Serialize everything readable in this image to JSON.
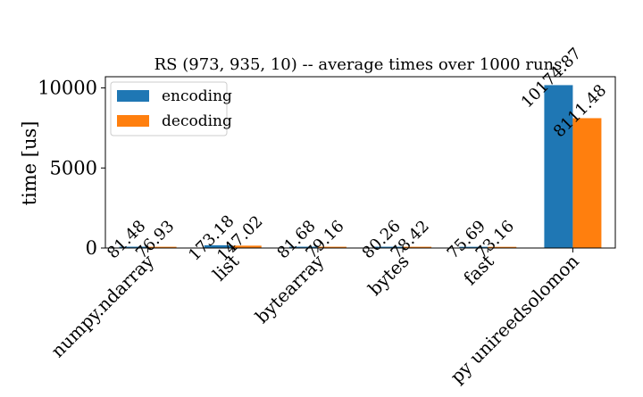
{
  "chart_data": {
    "type": "bar",
    "title": "RS (973, 935, 10) -- average times over 1000 runs",
    "xlabel": "",
    "ylabel": "time [us]",
    "ylim": [
      0,
      10700
    ],
    "yticks": [
      0,
      5000,
      10000
    ],
    "ytick_labels": [
      "0",
      "5000",
      "10000"
    ],
    "categories": [
      "numpy.ndarray",
      "list",
      "bytearray",
      "bytes",
      "fast",
      "py unireedsolomon"
    ],
    "series": [
      {
        "name": "encoding",
        "color": "#1f77b4",
        "values": [
          81.48,
          173.18,
          81.68,
          80.26,
          75.69,
          10174.87
        ],
        "labels": [
          "81.48",
          "173.18",
          "81.68",
          "80.26",
          "75.69",
          "10174.87"
        ]
      },
      {
        "name": "decoding",
        "color": "#ff7f0e",
        "values": [
          76.93,
          147.02,
          79.16,
          78.42,
          73.16,
          8111.48
        ],
        "labels": [
          "76.93",
          "147.02",
          "79.16",
          "78.42",
          "73.16",
          "8111.48"
        ]
      }
    ],
    "legend": {
      "position": "top-left",
      "entries": [
        "encoding",
        "decoding"
      ]
    },
    "grid": false,
    "bar_labels_rotation": 45,
    "xtick_rotation": 45
  }
}
